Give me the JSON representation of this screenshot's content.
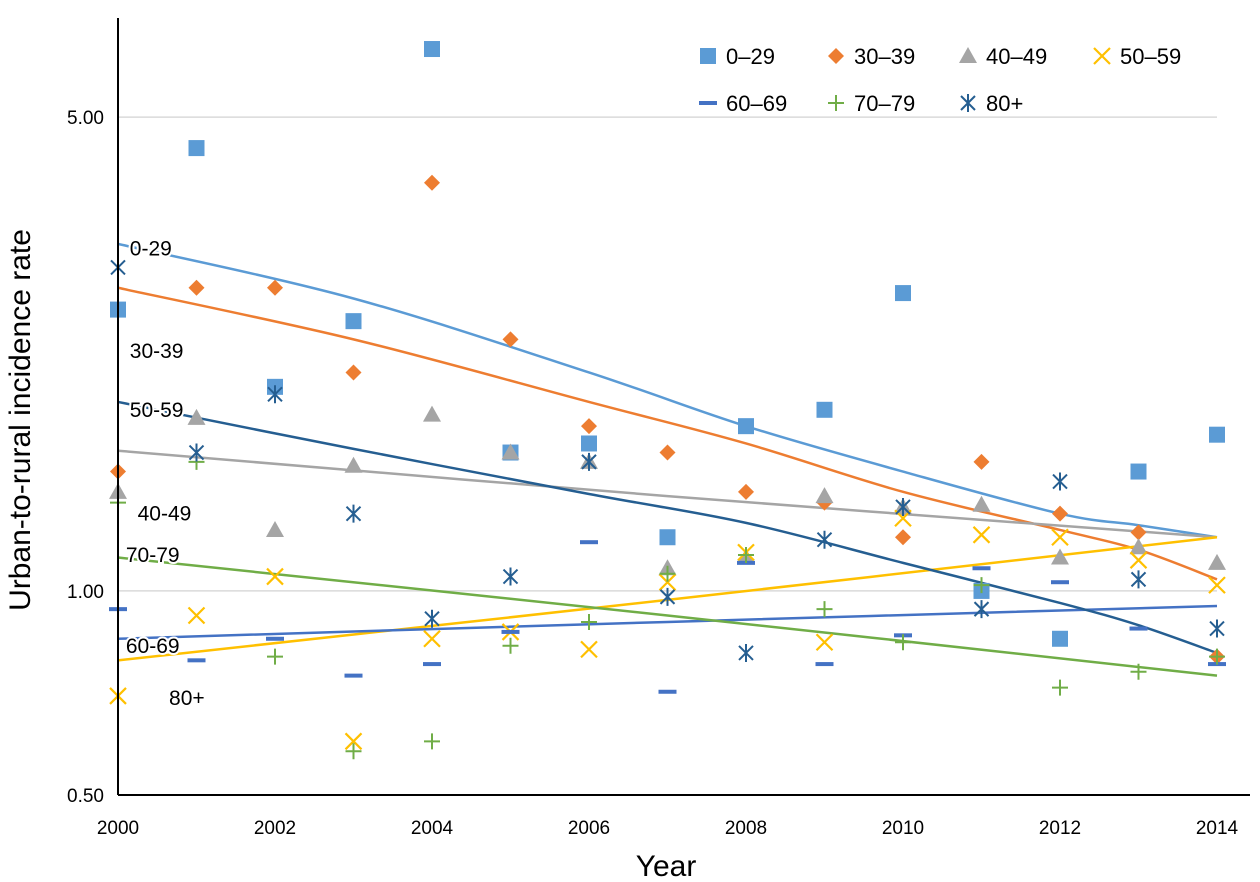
{
  "chart_data": {
    "type": "scatter",
    "title": "",
    "xlabel": "Year",
    "ylabel": "Urban-to-rural incidence rate",
    "x_axis": {
      "min": 2000,
      "max": 2014,
      "ticks": [
        2000,
        2002,
        2004,
        2006,
        2008,
        2010,
        2012,
        2014
      ],
      "tick_labels": [
        "2000",
        "2002",
        "2004",
        "2006",
        "2008",
        "2010",
        "2012",
        "2014"
      ]
    },
    "y_axis": {
      "scale": "log",
      "min": 0.5,
      "max": 7.0,
      "ticks": [
        0.5,
        1.0,
        5.0
      ],
      "tick_labels": [
        "0.50",
        "1.00",
        "5.00"
      ],
      "gridlines": [
        1.0,
        5.0
      ]
    },
    "legend": {
      "placement": "top-right",
      "columns": 4
    },
    "series": [
      {
        "name": "0–29",
        "marker": "square",
        "color": "#5b9bd5",
        "points": [
          [
            2000,
            2.6
          ],
          [
            2001,
            4.5
          ],
          [
            2002,
            2.0
          ],
          [
            2003,
            2.5
          ],
          [
            2004,
            6.3
          ],
          [
            2005,
            1.6
          ],
          [
            2006,
            1.65
          ],
          [
            2007,
            1.2
          ],
          [
            2008,
            1.75
          ],
          [
            2009,
            1.85
          ],
          [
            2010,
            2.75
          ],
          [
            2011,
            1.0
          ],
          [
            2012,
            0.85
          ],
          [
            2013,
            1.5
          ],
          [
            2014,
            1.7
          ]
        ],
        "trend": [
          [
            2000,
            3.25
          ],
          [
            2003,
            2.7
          ],
          [
            2006,
            2.1
          ],
          [
            2008,
            1.75
          ],
          [
            2010,
            1.5
          ],
          [
            2012,
            1.3
          ],
          [
            2013,
            1.25
          ],
          [
            2014,
            1.2
          ]
        ]
      },
      {
        "name": "30–39",
        "marker": "diamond",
        "color": "#ed7d31",
        "points": [
          [
            2000,
            1.5
          ],
          [
            2001,
            2.8
          ],
          [
            2002,
            2.8
          ],
          [
            2003,
            2.1
          ],
          [
            2004,
            4.0
          ],
          [
            2005,
            2.35
          ],
          [
            2006,
            1.75
          ],
          [
            2007,
            1.6
          ],
          [
            2008,
            1.4
          ],
          [
            2009,
            1.35
          ],
          [
            2010,
            1.2
          ],
          [
            2011,
            1.55
          ],
          [
            2012,
            1.3
          ],
          [
            2013,
            1.22
          ],
          [
            2014,
            0.8
          ]
        ],
        "trend": [
          [
            2000,
            2.8
          ],
          [
            2003,
            2.35
          ],
          [
            2006,
            1.9
          ],
          [
            2008,
            1.65
          ],
          [
            2010,
            1.4
          ],
          [
            2012,
            1.23
          ],
          [
            2013,
            1.15
          ],
          [
            2014,
            1.04
          ]
        ]
      },
      {
        "name": "40–49",
        "marker": "triangle",
        "color": "#a5a5a5",
        "points": [
          [
            2000,
            1.4
          ],
          [
            2001,
            1.8
          ],
          [
            2002,
            1.23
          ],
          [
            2003,
            1.53
          ],
          [
            2004,
            1.82
          ],
          [
            2005,
            1.6
          ],
          [
            2006,
            1.55
          ],
          [
            2007,
            1.08
          ],
          [
            2008,
            1.12
          ],
          [
            2009,
            1.38
          ],
          [
            2010,
            1.33
          ],
          [
            2011,
            1.34
          ],
          [
            2012,
            1.12
          ],
          [
            2013,
            1.16
          ],
          [
            2014,
            1.1
          ]
        ],
        "trend": [
          [
            2000,
            1.61
          ],
          [
            2007,
            1.38
          ],
          [
            2014,
            1.2
          ]
        ]
      },
      {
        "name": "50–59",
        "marker": "x",
        "color": "#ffc000",
        "points": [
          [
            2000,
            0.7
          ],
          [
            2001,
            0.92
          ],
          [
            2002,
            1.05
          ],
          [
            2003,
            0.6
          ],
          [
            2004,
            0.85
          ],
          [
            2005,
            0.87
          ],
          [
            2006,
            0.82
          ],
          [
            2007,
            1.03
          ],
          [
            2008,
            1.14
          ],
          [
            2009,
            0.84
          ],
          [
            2010,
            1.28
          ],
          [
            2011,
            1.21
          ],
          [
            2012,
            1.2
          ],
          [
            2013,
            1.11
          ],
          [
            2014,
            1.02
          ]
        ],
        "trend": [
          [
            2000,
            0.79
          ],
          [
            2007,
            0.97
          ],
          [
            2014,
            1.2
          ]
        ]
      },
      {
        "name": "60–69",
        "marker": "dash",
        "color": "#4472c4",
        "points": [
          [
            2000,
            0.94
          ],
          [
            2001,
            0.79
          ],
          [
            2002,
            0.85
          ],
          [
            2003,
            0.75
          ],
          [
            2004,
            0.78
          ],
          [
            2005,
            0.87
          ],
          [
            2006,
            1.18
          ],
          [
            2007,
            0.71
          ],
          [
            2008,
            1.1
          ],
          [
            2009,
            0.78
          ],
          [
            2010,
            0.86
          ],
          [
            2011,
            1.08
          ],
          [
            2012,
            1.03
          ],
          [
            2013,
            0.88
          ],
          [
            2014,
            0.78
          ]
        ],
        "trend": [
          [
            2000,
            0.85
          ],
          [
            2007,
            0.9
          ],
          [
            2014,
            0.95
          ]
        ]
      },
      {
        "name": "70–79",
        "marker": "plus",
        "color": "#70ad47",
        "points": [
          [
            2000,
            1.35
          ],
          [
            2001,
            1.55
          ],
          [
            2002,
            0.8
          ],
          [
            2003,
            0.58
          ],
          [
            2004,
            0.6
          ],
          [
            2005,
            0.83
          ],
          [
            2006,
            0.9
          ],
          [
            2007,
            1.06
          ],
          [
            2008,
            1.13
          ],
          [
            2009,
            0.94
          ],
          [
            2010,
            0.84
          ],
          [
            2011,
            1.02
          ],
          [
            2012,
            0.72
          ],
          [
            2013,
            0.76
          ],
          [
            2014,
            0.8
          ]
        ],
        "trend": [
          [
            2000,
            1.12
          ],
          [
            2007,
            0.92
          ],
          [
            2014,
            0.75
          ]
        ]
      },
      {
        "name": "80+",
        "marker": "asterisk",
        "color": "#255e91",
        "points": [
          [
            2000,
            3.0
          ],
          [
            2001,
            1.6
          ],
          [
            2002,
            1.95
          ],
          [
            2003,
            1.3
          ],
          [
            2004,
            0.91
          ],
          [
            2005,
            1.05
          ],
          [
            2006,
            1.55
          ],
          [
            2007,
            0.98
          ],
          [
            2008,
            0.81
          ],
          [
            2009,
            1.19
          ],
          [
            2010,
            1.33
          ],
          [
            2011,
            0.94
          ],
          [
            2012,
            1.45
          ],
          [
            2013,
            1.04
          ],
          [
            2014,
            0.88
          ]
        ],
        "trend": [
          [
            2000,
            1.9
          ],
          [
            2003,
            1.62
          ],
          [
            2006,
            1.39
          ],
          [
            2008,
            1.26
          ],
          [
            2010,
            1.1
          ],
          [
            2012,
            0.96
          ],
          [
            2013,
            0.89
          ],
          [
            2014,
            0.81
          ]
        ]
      }
    ],
    "fit_labels": [
      {
        "text": "0-29",
        "x": 2000.15,
        "y": 3.2
      },
      {
        "text": "30-39",
        "x": 2000.15,
        "y": 2.26
      },
      {
        "text": "50-59",
        "x": 2000.15,
        "y": 1.85
      },
      {
        "text": "40-49",
        "x": 2000.25,
        "y": 1.3
      },
      {
        "text": "70-79",
        "x": 2000.1,
        "y": 1.13
      },
      {
        "text": "60-69",
        "x": 2000.1,
        "y": 0.83
      },
      {
        "text": "80+",
        "x": 2000.65,
        "y": 0.695
      }
    ]
  }
}
